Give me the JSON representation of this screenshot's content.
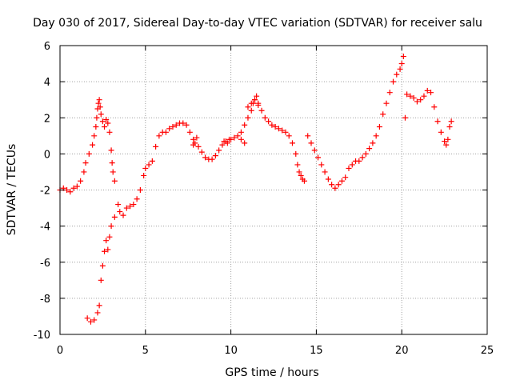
{
  "chart_data": {
    "type": "scatter",
    "title": "Day 030 of 2017, Sidereal Day-to-day VTEC variation (SDTVAR) for receiver salu",
    "xlabel": "GPS time / hours",
    "ylabel": "SDTVAR / TECUs",
    "xlim": [
      0,
      25
    ],
    "ylim": [
      -10,
      6
    ],
    "xticks": [
      0,
      5,
      10,
      15,
      20,
      25
    ],
    "yticks": [
      -10,
      -8,
      -6,
      -4,
      -2,
      0,
      2,
      4,
      6
    ],
    "xtick_labels": [
      "0",
      "5",
      "10",
      "15",
      "20",
      "25"
    ],
    "ytick_labels": [
      "-10",
      "-8",
      "-6",
      "-4",
      "-2",
      "0",
      "2",
      "4",
      "6"
    ],
    "grid": true,
    "marker": "+",
    "series_color": "#ff0000",
    "series": [
      {
        "name": "SDTVAR",
        "x": [
          0.0,
          0.2,
          0.4,
          0.6,
          0.8,
          1.0,
          1.2,
          1.4,
          1.5,
          1.7,
          1.9,
          2.0,
          2.1,
          2.15,
          2.2,
          2.25,
          2.3,
          2.35,
          2.4,
          2.5,
          2.6,
          2.7,
          2.8,
          2.9,
          3.0,
          3.05,
          3.1,
          3.2,
          1.6,
          1.8,
          2.0,
          2.2,
          2.3,
          2.4,
          2.5,
          2.6,
          2.7,
          2.8,
          2.9,
          3.0,
          3.2,
          3.4,
          3.5,
          3.7,
          3.9,
          4.1,
          4.3,
          4.5,
          4.7,
          4.9,
          5.0,
          5.2,
          5.4,
          5.6,
          5.8,
          6.0,
          6.2,
          6.4,
          6.6,
          6.8,
          7.0,
          7.2,
          7.4,
          7.6,
          7.8,
          7.9,
          8.1,
          8.3,
          8.5,
          8.7,
          8.9,
          9.1,
          9.3,
          9.5,
          9.7,
          9.9,
          10.0,
          10.2,
          10.4,
          10.6,
          10.8,
          11.0,
          11.2,
          11.3,
          11.4,
          11.5,
          11.6,
          11.8,
          12.0,
          12.2,
          12.4,
          12.6,
          12.8,
          13.0,
          13.2,
          13.4,
          13.6,
          13.8,
          13.9,
          14.0,
          14.1,
          14.2,
          14.3,
          14.5,
          14.7,
          14.9,
          15.1,
          15.3,
          15.5,
          15.7,
          15.9,
          16.1,
          16.3,
          16.5,
          16.7,
          16.9,
          17.1,
          17.3,
          17.5,
          17.7,
          17.9,
          18.1,
          18.3,
          18.5,
          18.7,
          18.9,
          19.1,
          19.3,
          19.5,
          19.7,
          19.9,
          20.0,
          20.1,
          20.2,
          20.3,
          20.5,
          20.7,
          20.9,
          21.1,
          21.3,
          21.5,
          21.7,
          21.9,
          22.1,
          22.3,
          22.5,
          22.6,
          22.7,
          22.8,
          22.9,
          11.0,
          11.2,
          11.4,
          11.6,
          10.6,
          10.8,
          7.8,
          8.0,
          9.6,
          9.8
        ],
        "y": [
          -2.0,
          -1.9,
          -2.0,
          -2.1,
          -1.9,
          -1.8,
          -1.5,
          -1.0,
          -0.5,
          0.0,
          0.5,
          1.0,
          1.5,
          2.0,
          2.5,
          2.8,
          3.0,
          2.6,
          2.2,
          1.8,
          1.5,
          1.9,
          1.7,
          1.2,
          0.2,
          -0.5,
          -1.0,
          -1.5,
          -9.1,
          -9.3,
          -9.2,
          -8.8,
          -8.4,
          -7.0,
          -6.2,
          -5.4,
          -4.8,
          -5.3,
          -4.6,
          -4.0,
          -3.5,
          -2.8,
          -3.2,
          -3.4,
          -3.0,
          -2.9,
          -2.8,
          -2.5,
          -2.0,
          -1.2,
          -0.8,
          -0.6,
          -0.4,
          0.4,
          1.0,
          1.2,
          1.2,
          1.4,
          1.5,
          1.6,
          1.7,
          1.7,
          1.6,
          1.2,
          0.8,
          0.6,
          0.4,
          0.1,
          -0.2,
          -0.3,
          -0.3,
          -0.1,
          0.2,
          0.5,
          0.7,
          0.8,
          0.8,
          0.9,
          1.0,
          1.2,
          1.6,
          2.0,
          2.4,
          2.8,
          3.0,
          3.2,
          2.8,
          2.4,
          2.0,
          1.8,
          1.6,
          1.5,
          1.4,
          1.3,
          1.2,
          1.0,
          0.6,
          0.0,
          -0.6,
          -1.0,
          -1.2,
          -1.4,
          -1.5,
          1.0,
          0.6,
          0.2,
          -0.2,
          -0.6,
          -1.0,
          -1.4,
          -1.7,
          -1.9,
          -1.7,
          -1.5,
          -1.3,
          -0.8,
          -0.6,
          -0.4,
          -0.4,
          -0.2,
          0.0,
          0.3,
          0.6,
          1.0,
          1.5,
          2.2,
          2.8,
          3.4,
          4.0,
          4.4,
          4.7,
          5.0,
          5.4,
          2.0,
          3.3,
          3.2,
          3.1,
          2.9,
          3.0,
          3.2,
          3.5,
          3.4,
          2.6,
          1.8,
          1.2,
          0.7,
          0.5,
          0.8,
          1.5,
          1.8,
          2.6,
          2.8,
          3.0,
          2.7,
          0.8,
          0.6,
          0.5,
          0.9,
          0.7,
          0.6
        ],
        "color": "#ff0000"
      }
    ]
  }
}
